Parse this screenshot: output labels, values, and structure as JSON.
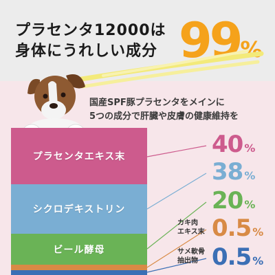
{
  "headline": {
    "line1": "プラセンタ12000は",
    "line2": "身体にうれしい成分",
    "big_value": "99",
    "big_unit": "%"
  },
  "subtitle": {
    "line1": "国産SPF豚プラセンタをメインに",
    "line2": "5つの成分で肝臓や皮膚の健康維持を"
  },
  "ingredients": [
    {
      "name": "プラセンタエキス末",
      "value": "40",
      "unit": "%",
      "color": "#cd5b8d"
    },
    {
      "name": "シクロデキストリン",
      "value": "38",
      "unit": "%",
      "color": "#7aaed3"
    },
    {
      "name": "ビール酵母",
      "value": "20",
      "unit": "%",
      "color": "#6ab356"
    },
    {
      "name_line1": "カキ肉",
      "name_line2": "エキス末",
      "value": "0.5",
      "unit": "%",
      "color": "#d88a45"
    },
    {
      "name_line1": "サメ軟骨",
      "name_line2": "抽出物",
      "value": "0.5",
      "unit": "%",
      "color": "#3b6fb5"
    }
  ],
  "accent_color": "#f5a21b"
}
